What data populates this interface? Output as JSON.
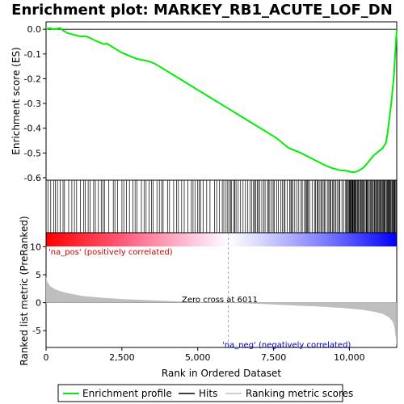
{
  "colors": {
    "es_line": "#00ee00",
    "hits": "#000000",
    "metric_fill": "#bebebe",
    "pos_label": "#cc0000",
    "neg_label": "#0000cc",
    "frame": "#000000"
  },
  "chart_data": {
    "type": "line",
    "title": "Enrichment plot: MARKEY_RB1_ACUTE_LOF_DN",
    "xlabel": "Rank in Ordered Dataset",
    "es_ylabel": "Enrichment score (ES)",
    "metric_ylabel": "Ranked list metric (PreRanked)",
    "xlim": [
      0,
      11560
    ],
    "x_ticks": [
      0,
      2500,
      5000,
      7500,
      10000
    ],
    "x_tick_labels": [
      "0",
      "2,500",
      "5,000",
      "7,500",
      "10,000"
    ],
    "es_ylim": [
      -0.61,
      0.03
    ],
    "es_ticks": [
      0.0,
      -0.1,
      -0.2,
      -0.3,
      -0.4,
      -0.5,
      -0.6
    ],
    "es_tick_labels": [
      "0.0",
      "-0.1",
      "-0.2",
      "-0.3",
      "-0.4",
      "-0.5",
      "-0.6"
    ],
    "metric_ylim": [
      -8,
      12.5
    ],
    "metric_ticks": [
      10,
      5,
      0,
      -5
    ],
    "metric_tick_labels": [
      "10",
      "5",
      "0",
      "-5"
    ],
    "enrichment_profile": {
      "name": "Enrichment profile",
      "x": [
        0,
        120,
        250,
        380,
        470,
        560,
        700,
        850,
        1000,
        1150,
        1250,
        1350,
        1450,
        1600,
        1800,
        1900,
        2000,
        2100,
        2300,
        2500,
        2800,
        3000,
        3200,
        3400,
        3600,
        3800,
        4000,
        4400,
        4800,
        5200,
        5600,
        6000,
        6400,
        6800,
        7200,
        7600,
        7800,
        8000,
        8400,
        8800,
        9200,
        9400,
        9700,
        9900,
        10100,
        10250,
        10400,
        10500,
        10600,
        10700,
        10800,
        10900,
        11000,
        11100,
        11200,
        11260,
        11300,
        11340,
        11380,
        11420,
        11460,
        11480,
        11500,
        11520,
        11540,
        11560
      ],
      "values": [
        0.0,
        0.005,
        0.0,
        0.003,
        0.005,
        -0.005,
        -0.015,
        -0.02,
        -0.025,
        -0.03,
        -0.028,
        -0.03,
        -0.035,
        -0.045,
        -0.055,
        -0.06,
        -0.058,
        -0.065,
        -0.08,
        -0.095,
        -0.11,
        -0.12,
        -0.125,
        -0.13,
        -0.14,
        -0.155,
        -0.17,
        -0.2,
        -0.23,
        -0.26,
        -0.29,
        -0.32,
        -0.35,
        -0.38,
        -0.41,
        -0.44,
        -0.46,
        -0.48,
        -0.5,
        -0.525,
        -0.55,
        -0.56,
        -0.57,
        -0.572,
        -0.578,
        -0.575,
        -0.565,
        -0.555,
        -0.54,
        -0.525,
        -0.51,
        -0.5,
        -0.49,
        -0.48,
        -0.46,
        -0.42,
        -0.38,
        -0.34,
        -0.3,
        -0.25,
        -0.2,
        -0.16,
        -0.12,
        -0.08,
        -0.04,
        0.0
      ]
    },
    "hits_label": "Hits",
    "metric_label": "Ranking metric scores",
    "metric_profile": {
      "x": [
        0,
        50,
        150,
        300,
        500,
        800,
        1200,
        1800,
        2500,
        3500,
        4500,
        5500,
        6011,
        7000,
        8000,
        9000,
        9800,
        10400,
        10800,
        11100,
        11300,
        11420,
        11480,
        11520,
        11560
      ],
      "values": [
        4.6,
        3.6,
        2.9,
        2.4,
        2.0,
        1.6,
        1.2,
        0.9,
        0.65,
        0.4,
        0.2,
        0.06,
        0.0,
        -0.2,
        -0.45,
        -0.7,
        -0.95,
        -1.25,
        -1.6,
        -2.0,
        -2.6,
        -3.3,
        -4.2,
        -5.8,
        -7.8
      ]
    },
    "zero_cross_label": "Zero cross at 6011",
    "zero_cross": 6011,
    "pos_label": "'na_pos' (positively correlated)",
    "neg_label": "'na_neg' (negatively correlated)",
    "legend_entries": [
      "Enrichment profile",
      "Hits",
      "Ranking metric scores"
    ],
    "legend_position": "bottom",
    "grid": false
  }
}
